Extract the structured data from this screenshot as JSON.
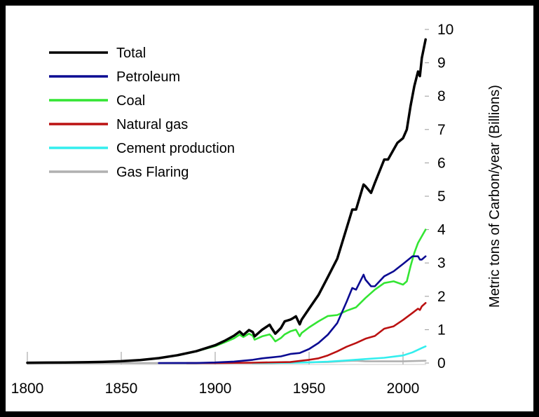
{
  "chart_data": {
    "type": "line",
    "title": "",
    "xlabel": "",
    "ylabel": "Metric tons of Carbon/year (Billions)",
    "xlim": [
      1800,
      2012
    ],
    "ylim": [
      0,
      10
    ],
    "x_ticks": [
      1800,
      1850,
      1900,
      1950,
      2000
    ],
    "y_ticks": [
      0,
      1,
      2,
      3,
      4,
      5,
      6,
      7,
      8,
      9,
      10
    ],
    "y_axis_position": "right",
    "grid": false,
    "legend_position": "top-left",
    "series": [
      {
        "name": "Total",
        "color": "#000000",
        "points": [
          [
            1800,
            0.008
          ],
          [
            1810,
            0.012
          ],
          [
            1820,
            0.014
          ],
          [
            1830,
            0.024
          ],
          [
            1840,
            0.033
          ],
          [
            1850,
            0.054
          ],
          [
            1860,
            0.091
          ],
          [
            1870,
            0.147
          ],
          [
            1880,
            0.236
          ],
          [
            1890,
            0.356
          ],
          [
            1900,
            0.534
          ],
          [
            1905,
            0.663
          ],
          [
            1910,
            0.819
          ],
          [
            1913,
            0.943
          ],
          [
            1915,
            0.84
          ],
          [
            1918,
            0.99
          ],
          [
            1920,
            0.93
          ],
          [
            1921,
            0.8
          ],
          [
            1925,
            1.0
          ],
          [
            1929,
            1.15
          ],
          [
            1930,
            1.05
          ],
          [
            1932,
            0.88
          ],
          [
            1935,
            1.05
          ],
          [
            1937,
            1.25
          ],
          [
            1940,
            1.3
          ],
          [
            1941,
            1.33
          ],
          [
            1943,
            1.4
          ],
          [
            1945,
            1.16
          ],
          [
            1946,
            1.3
          ],
          [
            1950,
            1.63
          ],
          [
            1955,
            2.04
          ],
          [
            1960,
            2.58
          ],
          [
            1965,
            3.13
          ],
          [
            1970,
            4.05
          ],
          [
            1973,
            4.6
          ],
          [
            1975,
            4.6
          ],
          [
            1979,
            5.35
          ],
          [
            1980,
            5.3
          ],
          [
            1983,
            5.1
          ],
          [
            1985,
            5.4
          ],
          [
            1990,
            6.1
          ],
          [
            1992,
            6.1
          ],
          [
            1995,
            6.4
          ],
          [
            1997,
            6.6
          ],
          [
            2000,
            6.74
          ],
          [
            2002,
            7.0
          ],
          [
            2004,
            7.7
          ],
          [
            2006,
            8.3
          ],
          [
            2008,
            8.74
          ],
          [
            2009,
            8.6
          ],
          [
            2010,
            9.14
          ],
          [
            2012,
            9.7
          ]
        ]
      },
      {
        "name": "Petroleum",
        "color": "#0b0b92",
        "points": [
          [
            1870,
            0.0
          ],
          [
            1890,
            0.003
          ],
          [
            1900,
            0.016
          ],
          [
            1910,
            0.044
          ],
          [
            1920,
            0.097
          ],
          [
            1925,
            0.14
          ],
          [
            1930,
            0.17
          ],
          [
            1935,
            0.2
          ],
          [
            1940,
            0.27
          ],
          [
            1945,
            0.3
          ],
          [
            1950,
            0.42
          ],
          [
            1955,
            0.6
          ],
          [
            1960,
            0.85
          ],
          [
            1965,
            1.2
          ],
          [
            1970,
            1.84
          ],
          [
            1973,
            2.25
          ],
          [
            1975,
            2.2
          ],
          [
            1979,
            2.65
          ],
          [
            1980,
            2.5
          ],
          [
            1983,
            2.3
          ],
          [
            1985,
            2.3
          ],
          [
            1990,
            2.6
          ],
          [
            1995,
            2.75
          ],
          [
            2000,
            2.97
          ],
          [
            2005,
            3.2
          ],
          [
            2008,
            3.2
          ],
          [
            2009,
            3.1
          ],
          [
            2010,
            3.1
          ],
          [
            2012,
            3.2
          ]
        ]
      },
      {
        "name": "Coal",
        "color": "#33e533",
        "points": [
          [
            1800,
            0.008
          ],
          [
            1810,
            0.01
          ],
          [
            1820,
            0.014
          ],
          [
            1830,
            0.024
          ],
          [
            1840,
            0.033
          ],
          [
            1850,
            0.054
          ],
          [
            1860,
            0.091
          ],
          [
            1870,
            0.147
          ],
          [
            1880,
            0.23
          ],
          [
            1890,
            0.35
          ],
          [
            1900,
            0.507
          ],
          [
            1905,
            0.62
          ],
          [
            1910,
            0.74
          ],
          [
            1913,
            0.85
          ],
          [
            1915,
            0.78
          ],
          [
            1918,
            0.88
          ],
          [
            1920,
            0.82
          ],
          [
            1921,
            0.7
          ],
          [
            1925,
            0.8
          ],
          [
            1929,
            0.86
          ],
          [
            1930,
            0.8
          ],
          [
            1932,
            0.65
          ],
          [
            1935,
            0.75
          ],
          [
            1937,
            0.86
          ],
          [
            1940,
            0.95
          ],
          [
            1943,
            1.0
          ],
          [
            1945,
            0.8
          ],
          [
            1946,
            0.9
          ],
          [
            1950,
            1.07
          ],
          [
            1955,
            1.25
          ],
          [
            1960,
            1.41
          ],
          [
            1965,
            1.44
          ],
          [
            1970,
            1.57
          ],
          [
            1975,
            1.67
          ],
          [
            1980,
            1.95
          ],
          [
            1985,
            2.2
          ],
          [
            1990,
            2.4
          ],
          [
            1995,
            2.45
          ],
          [
            2000,
            2.35
          ],
          [
            2002,
            2.45
          ],
          [
            2004,
            2.9
          ],
          [
            2006,
            3.3
          ],
          [
            2008,
            3.6
          ],
          [
            2010,
            3.8
          ],
          [
            2012,
            4.0
          ]
        ]
      },
      {
        "name": "Natural gas",
        "color": "#bb1111",
        "points": [
          [
            1885,
            0.0
          ],
          [
            1900,
            0.002
          ],
          [
            1920,
            0.01
          ],
          [
            1930,
            0.02
          ],
          [
            1940,
            0.03
          ],
          [
            1950,
            0.097
          ],
          [
            1955,
            0.14
          ],
          [
            1960,
            0.23
          ],
          [
            1965,
            0.35
          ],
          [
            1970,
            0.49
          ],
          [
            1975,
            0.6
          ],
          [
            1980,
            0.73
          ],
          [
            1985,
            0.81
          ],
          [
            1990,
            1.03
          ],
          [
            1995,
            1.1
          ],
          [
            2000,
            1.29
          ],
          [
            2005,
            1.5
          ],
          [
            2008,
            1.63
          ],
          [
            2009,
            1.59
          ],
          [
            2010,
            1.7
          ],
          [
            2012,
            1.8
          ]
        ]
      },
      {
        "name": "Cement production",
        "color": "#33eeee",
        "points": [
          [
            1920,
            0.0
          ],
          [
            1930,
            0.005
          ],
          [
            1940,
            0.008
          ],
          [
            1950,
            0.018
          ],
          [
            1960,
            0.043
          ],
          [
            1970,
            0.078
          ],
          [
            1980,
            0.12
          ],
          [
            1990,
            0.157
          ],
          [
            2000,
            0.226
          ],
          [
            2005,
            0.32
          ],
          [
            2010,
            0.45
          ],
          [
            2012,
            0.5
          ]
        ]
      },
      {
        "name": "Gas Flaring",
        "color": "#b0b0b0",
        "points": [
          [
            1800,
            0.0
          ],
          [
            1900,
            0.0
          ],
          [
            1930,
            0.0
          ],
          [
            1950,
            0.02
          ],
          [
            1960,
            0.03
          ],
          [
            1970,
            0.06
          ],
          [
            1975,
            0.07
          ],
          [
            1980,
            0.05
          ],
          [
            1990,
            0.05
          ],
          [
            2000,
            0.05
          ],
          [
            2012,
            0.07
          ]
        ]
      }
    ]
  }
}
